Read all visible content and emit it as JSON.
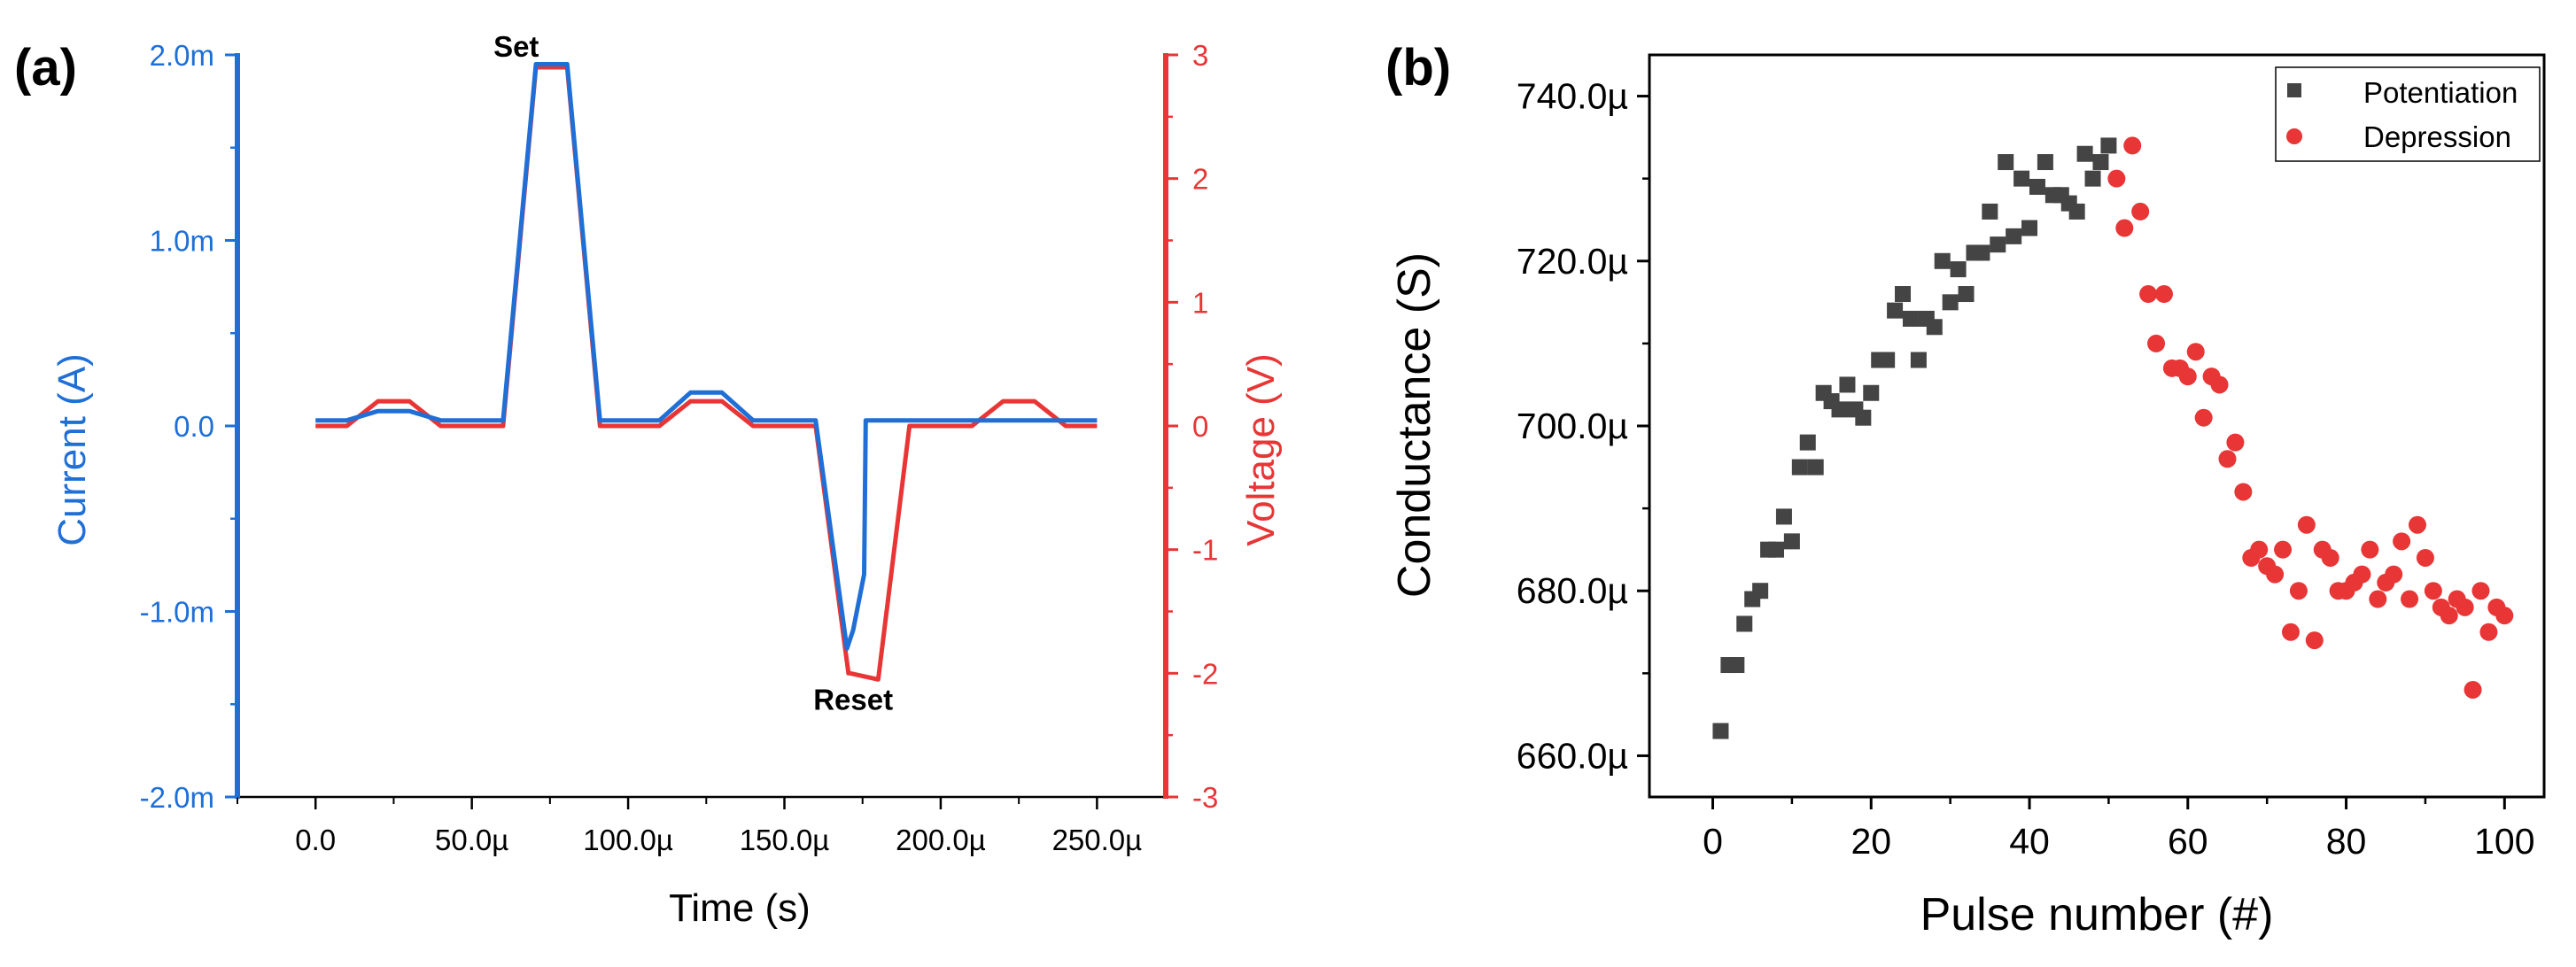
{
  "colors": {
    "current": "#1f6fd6",
    "voltage": "#e83535",
    "potentiation": "#444444",
    "depression": "#e83535",
    "axis": "#000000"
  },
  "chart_data": [
    {
      "type": "line",
      "panel_label": "(a)",
      "xlabel": "Time (s)",
      "ylabel_left": "Current (A)",
      "ylabel_right": "Voltage (V)",
      "xlim": [
        -2.5e-05,
        0.000272
      ],
      "ylim_left": [
        -0.002,
        0.002
      ],
      "ylim_right": [
        -3,
        3
      ],
      "xticks": [
        0,
        5e-05,
        0.0001,
        0.00015,
        0.0002,
        0.00025
      ],
      "xtick_labels": [
        "0.0",
        "50.0µ",
        "100.0µ",
        "150.0µ",
        "200.0µ",
        "250.0µ"
      ],
      "yticks_left": [
        -0.002,
        -0.001,
        0,
        0.001,
        0.002
      ],
      "ytick_labels_left": [
        "-2.0m",
        "-1.0m",
        "0.0",
        "1.0m",
        "2.0m"
      ],
      "yticks_right": [
        -3,
        -2,
        -1,
        0,
        1,
        2,
        3
      ],
      "ytick_labels_right": [
        "-3",
        "-2",
        "-1",
        "0",
        "1",
        "2",
        "3"
      ],
      "annotations": [
        {
          "text": "Set",
          "x": 6.42e-05,
          "y": 0.00199
        },
        {
          "text": "Reset",
          "x": 0.000172,
          "y": -0.00153
        }
      ],
      "series": [
        {
          "name": "Voltage",
          "axis": "right",
          "x": [
            0,
            1e-05,
            2e-05,
            3e-05,
            4e-05,
            5e-05,
            6e-05,
            7.05e-05,
            8.05e-05,
            9.1e-05,
            0.0001,
            0.00011,
            0.00012,
            0.00013,
            0.00014,
            0.00015,
            0.00016,
            0.0001705,
            0.000171,
            0.00018,
            0.00019,
            0.0002,
            0.00021,
            0.00022,
            0.00023,
            0.00024,
            0.00025
          ],
          "y": [
            0,
            0,
            0.2,
            0.2,
            0,
            0,
            0,
            2.9,
            2.9,
            0,
            0,
            0,
            0.2,
            0.2,
            0,
            0,
            0,
            -2.0,
            -2.0,
            -2.05,
            0,
            0,
            0,
            0.2,
            0.2,
            0,
            0
          ]
        },
        {
          "name": "Current",
          "axis": "left",
          "x": [
            0,
            1e-05,
            2e-05,
            3e-05,
            4e-05,
            5e-05,
            6e-05,
            7.05e-05,
            8.05e-05,
            9.1e-05,
            0.0001,
            0.00011,
            0.00012,
            0.00013,
            0.00014,
            0.00015,
            0.00016,
            0.00017,
            0.000172,
            0.0001755,
            0.000176,
            0.00019,
            0.0002,
            0.00021,
            0.00022,
            0.00023,
            0.00024,
            0.00025
          ],
          "y": [
            3e-05,
            3e-05,
            8e-05,
            8e-05,
            3e-05,
            3e-05,
            3e-05,
            0.00195,
            0.00195,
            3e-05,
            3e-05,
            3e-05,
            0.00018,
            0.00018,
            3e-05,
            3e-05,
            3e-05,
            -0.0012,
            -0.0011,
            -0.0008,
            3e-05,
            3e-05,
            3e-05,
            3e-05,
            3e-05,
            3e-05,
            3e-05,
            3e-05
          ]
        }
      ]
    },
    {
      "type": "scatter",
      "panel_label": "(b)",
      "xlabel": "Pulse number (#)",
      "ylabel": "Conductance (S)",
      "xlim": [
        -8,
        105
      ],
      "ylim": [
        0.000655,
        0.000745
      ],
      "xticks": [
        0,
        20,
        40,
        60,
        80,
        100
      ],
      "xtick_labels": [
        "0",
        "20",
        "40",
        "60",
        "80",
        "100"
      ],
      "yticks": [
        0.00066,
        0.00068,
        0.0007,
        0.00072,
        0.00074
      ],
      "ytick_labels": [
        "660.0µ",
        "680.0µ",
        "700.0µ",
        "720.0µ",
        "740.0µ"
      ],
      "legend_position": "top-right",
      "series": [
        {
          "name": "Potentiation",
          "marker": "square",
          "x": [
            1,
            2,
            3,
            4,
            5,
            6,
            7,
            8,
            9,
            10,
            11,
            12,
            13,
            14,
            15,
            16,
            17,
            18,
            19,
            20,
            21,
            22,
            23,
            24,
            25,
            26,
            27,
            28,
            29,
            30,
            31,
            32,
            33,
            34,
            35,
            36,
            37,
            38,
            39,
            40,
            41,
            42,
            43,
            44,
            45,
            46,
            47,
            48,
            49,
            50
          ],
          "y": [
            0.000663,
            0.000671,
            0.000671,
            0.000676,
            0.000679,
            0.00068,
            0.000685,
            0.000685,
            0.000689,
            0.000686,
            0.000695,
            0.000698,
            0.000695,
            0.000704,
            0.000703,
            0.000702,
            0.000705,
            0.000702,
            0.000701,
            0.000704,
            0.000708,
            0.000708,
            0.000714,
            0.000716,
            0.000713,
            0.000708,
            0.000713,
            0.000712,
            0.00072,
            0.000715,
            0.000719,
            0.000716,
            0.000721,
            0.000721,
            0.000726,
            0.000722,
            0.000732,
            0.000723,
            0.00073,
            0.000724,
            0.000729,
            0.000732,
            0.000728,
            0.000728,
            0.000727,
            0.000726,
            0.000733,
            0.00073,
            0.000732,
            0.000734
          ]
        },
        {
          "name": "Depression",
          "marker": "circle",
          "x": [
            51,
            52,
            53,
            54,
            55,
            56,
            57,
            58,
            59,
            60,
            61,
            62,
            63,
            64,
            65,
            66,
            67,
            68,
            69,
            70,
            71,
            72,
            73,
            74,
            75,
            76,
            77,
            78,
            79,
            80,
            81,
            82,
            83,
            84,
            85,
            86,
            87,
            88,
            89,
            90,
            91,
            92,
            93,
            94,
            95,
            96,
            97,
            98,
            99,
            100
          ],
          "y": [
            0.00073,
            0.000724,
            0.000734,
            0.000726,
            0.000716,
            0.00071,
            0.000716,
            0.000707,
            0.000707,
            0.000706,
            0.000709,
            0.000701,
            0.000706,
            0.000705,
            0.000696,
            0.000698,
            0.000692,
            0.000684,
            0.000685,
            0.000683,
            0.000682,
            0.000685,
            0.000675,
            0.00068,
            0.000688,
            0.000674,
            0.000685,
            0.000684,
            0.00068,
            0.00068,
            0.000681,
            0.000682,
            0.000685,
            0.000679,
            0.000681,
            0.000682,
            0.000686,
            0.000679,
            0.000688,
            0.000684,
            0.00068,
            0.000678,
            0.000677,
            0.000679,
            0.000678,
            0.000668,
            0.00068,
            0.000675,
            0.000678,
            0.000677
          ]
        }
      ]
    }
  ]
}
